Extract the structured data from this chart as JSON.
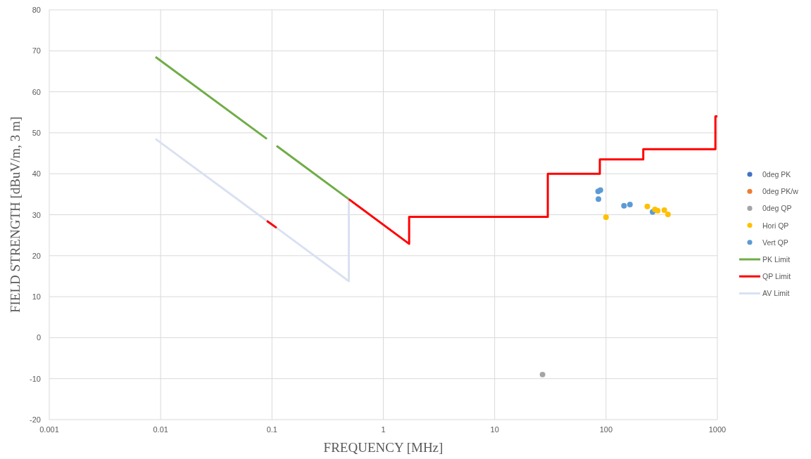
{
  "chart_data": {
    "type": "scatter",
    "xlabel": "FREQUENCY [MHz]",
    "ylabel": "FIELD STRENGTH [dBuV/m, 3 m]",
    "log": "x",
    "xlim": [
      0.001,
      1000
    ],
    "xticks": [
      0.001,
      0.01,
      0.1,
      1,
      10,
      100,
      1000
    ],
    "ylim": [
      -20,
      80
    ],
    "yticks": [
      -20,
      -10,
      0,
      10,
      20,
      30,
      40,
      50,
      60,
      70,
      80
    ],
    "grid": true,
    "legend": "right",
    "marker": "circle",
    "series": [
      {
        "name": "0deg PK",
        "color": "#4472c4"
      },
      {
        "name": "0deg PK/w",
        "color": "#ed7d31"
      },
      {
        "name": "0deg QP",
        "color": "#a5a5a5",
        "x": [
          26.9
        ],
        "values": [
          -9.0
        ]
      },
      {
        "name": "Hori QP",
        "color": "#ffc000",
        "x": [
          100,
          235,
          275,
          291,
          334,
          360
        ],
        "values": [
          29.4,
          32.0,
          31.3,
          31.0,
          31.1,
          30.1
        ]
      },
      {
        "name": "Vert QP",
        "color": "#5b9bd5",
        "x": [
          85,
          89,
          85.5,
          145,
          164,
          262
        ],
        "values": [
          35.7,
          36.0,
          33.8,
          32.2,
          32.5,
          30.7
        ]
      },
      {
        "name": "PK Limit",
        "type": "line",
        "marker": "none",
        "color": "#70ad47",
        "x": [
          0.009,
          0.09,
          0.1,
          0.11,
          0.49
        ],
        "values": [
          68.5,
          48.5,
          null,
          46.8,
          33.8
        ]
      },
      {
        "name": "QP Limit",
        "type": "line",
        "marker": "none",
        "color": "#ff0000",
        "x": [
          0.09,
          0.11,
          0.3,
          0.49,
          1.705,
          1.705,
          30,
          30,
          88,
          88,
          216,
          216,
          960,
          960,
          1000
        ],
        "values": [
          28.5,
          26.8,
          null,
          33.8,
          22.9,
          29.5,
          29.5,
          40,
          40,
          43.5,
          43.5,
          46,
          46,
          54,
          54
        ]
      },
      {
        "name": "AV Limit",
        "type": "line",
        "marker": "none",
        "color": "#d9e1f2",
        "x": [
          0.009,
          0.09,
          0.11,
          0.49,
          0.49
        ],
        "values": [
          48.5,
          28.5,
          26.8,
          13.8,
          33.8
        ]
      }
    ]
  }
}
